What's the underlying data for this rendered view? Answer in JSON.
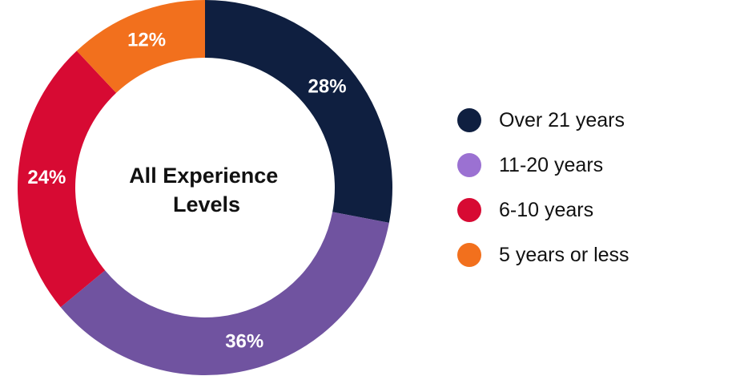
{
  "chart_data": {
    "type": "pie",
    "subtype": "donut",
    "center_label": [
      "All Experience",
      "Levels"
    ],
    "series": [
      {
        "name": "Over 21 years",
        "value": 28,
        "label": "28%",
        "color": "#0f1f40"
      },
      {
        "name": "11-20 years",
        "value": 36,
        "label": "36%",
        "color": "#7053a0"
      },
      {
        "name": "6-10 years",
        "value": 24,
        "label": "24%",
        "color": "#d70a33"
      },
      {
        "name": "5 years or less",
        "value": 12,
        "label": "12%",
        "color": "#f2701d"
      }
    ],
    "legend_position": "right"
  },
  "legend": {
    "items": [
      {
        "label": "Over 21 years",
        "color": "#0f1f40"
      },
      {
        "label": "11-20 years",
        "color": "#9b71d2"
      },
      {
        "label": "6-10 years",
        "color": "#d70a33"
      },
      {
        "label": "5 years or less",
        "color": "#f2701d"
      }
    ]
  }
}
